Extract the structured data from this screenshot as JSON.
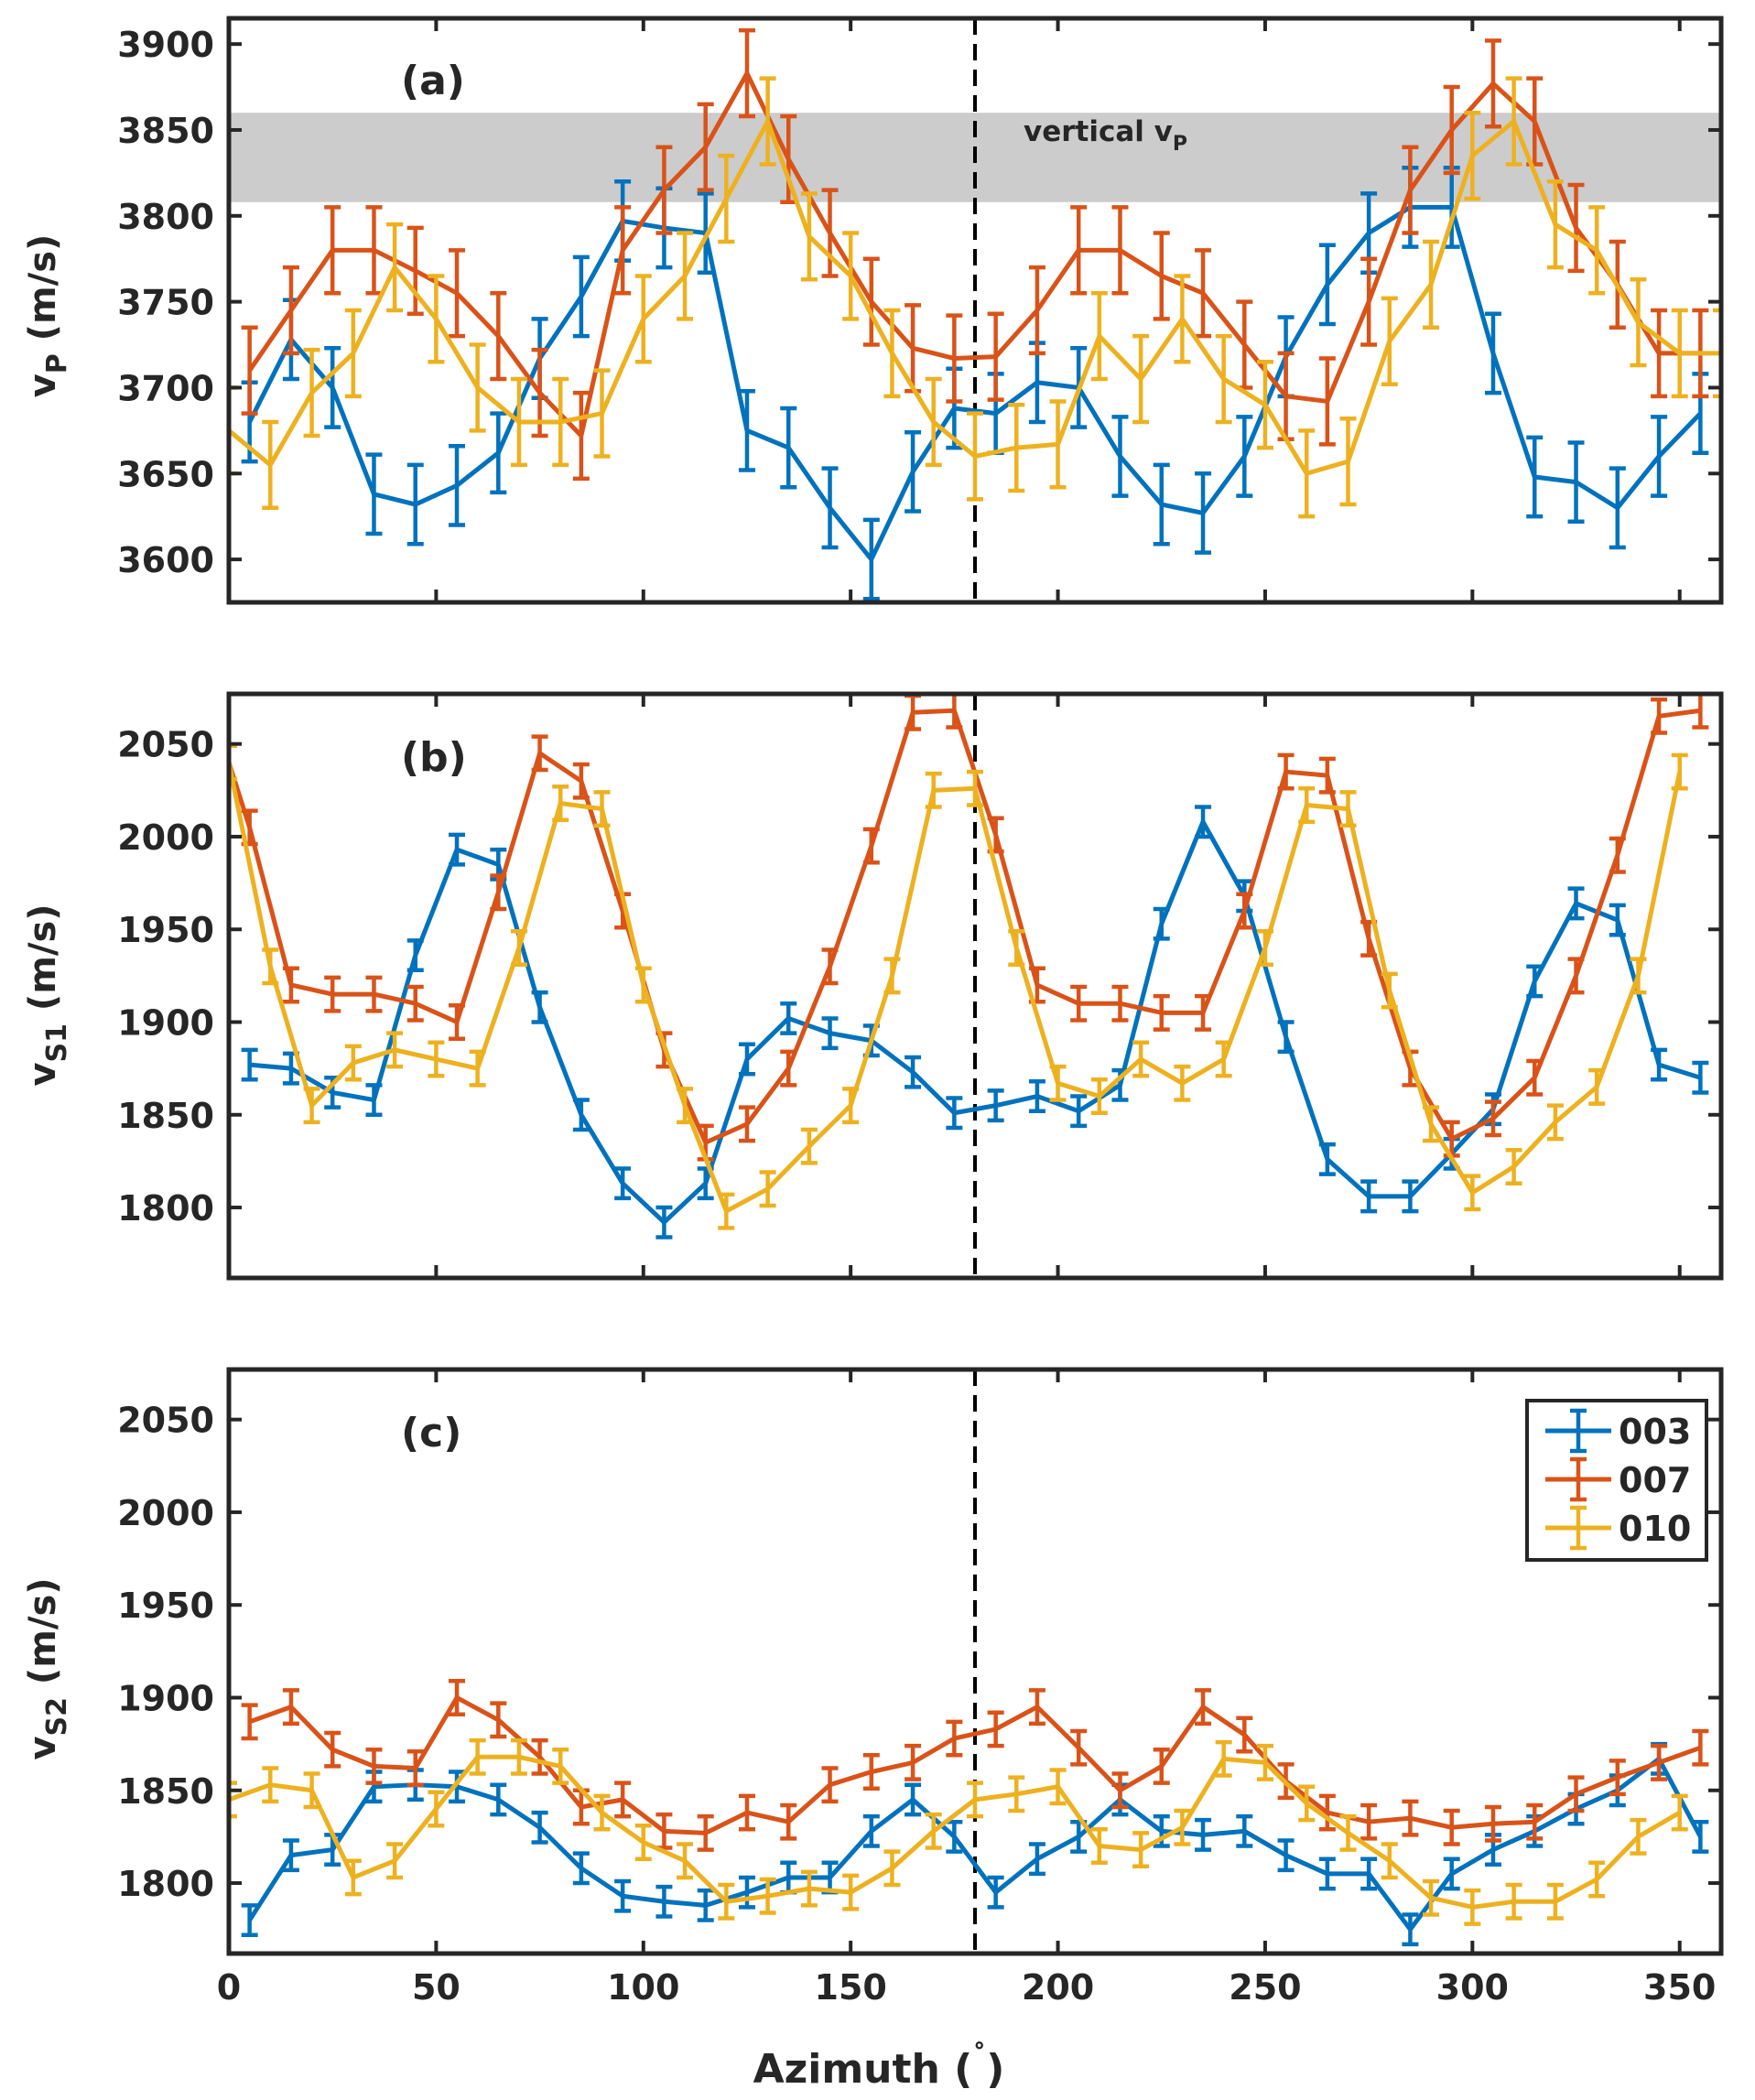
{
  "colors": {
    "s003": "#0072BD",
    "s007": "#D95319",
    "s010": "#EDB120",
    "band": "#CCCCCC",
    "axis": "#262626"
  },
  "xlabel": "Azimuth (",
  "xlabel_degree": "˚",
  "xlabel_close": ")",
  "panels": {
    "a": {
      "label": "(a)",
      "ylabel_main": "v",
      "ylabel_sub": "P",
      "ylabel_unit": " (m/s)",
      "band_label_main": "vertical v",
      "band_label_sub": "P"
    },
    "b": {
      "label": "(b)",
      "ylabel_main": "v",
      "ylabel_sub": "S1",
      "ylabel_unit": " (m/s)"
    },
    "c": {
      "label": "(c)",
      "ylabel_main": "v",
      "ylabel_sub": "S2",
      "ylabel_unit": " (m/s)"
    }
  },
  "legend": {
    "labels": [
      "003",
      "007",
      "010"
    ]
  },
  "chart_data": [
    {
      "id": "a",
      "type": "line",
      "title": "(a)",
      "xlabel": "Azimuth (˚)",
      "ylabel": "vP (m/s)",
      "xlim": [
        0,
        360
      ],
      "ylim": [
        3575,
        3915
      ],
      "xticks": [
        0,
        50,
        100,
        150,
        200,
        250,
        300,
        350
      ],
      "yticks": [
        3600,
        3650,
        3700,
        3750,
        3800,
        3850,
        3900
      ],
      "band": {
        "y0": 3808,
        "y1": 3860,
        "label": "vertical vP"
      },
      "vline": 180,
      "series": [
        {
          "name": "003",
          "x": [
            5,
            15,
            25,
            35,
            45,
            55,
            65,
            75,
            85,
            95,
            105,
            115,
            125,
            135,
            145,
            155,
            165,
            175,
            185,
            195,
            205,
            215,
            225,
            235,
            245,
            255,
            265,
            275,
            285,
            295,
            305,
            315,
            325,
            335,
            345,
            355
          ],
          "y": [
            3680,
            3728,
            3700,
            3638,
            3632,
            3643,
            3662,
            3717,
            3753,
            3797,
            3793,
            3790,
            3675,
            3665,
            3630,
            3600,
            3651,
            3688,
            3685,
            3703,
            3700,
            3660,
            3632,
            3627,
            3660,
            3718,
            3760,
            3790,
            3805,
            3805,
            3720,
            3648,
            3645,
            3630,
            3660,
            3685
          ],
          "err": 23
        },
        {
          "name": "007",
          "x": [
            5,
            15,
            25,
            35,
            45,
            55,
            65,
            75,
            85,
            95,
            105,
            115,
            125,
            135,
            145,
            155,
            165,
            175,
            185,
            195,
            205,
            215,
            225,
            235,
            245,
            255,
            265,
            275,
            285,
            295,
            305,
            315,
            325,
            335,
            345,
            355
          ],
          "y": [
            3710,
            3745,
            3780,
            3780,
            3768,
            3755,
            3730,
            3697,
            3672,
            3780,
            3815,
            3840,
            3883,
            3833,
            3790,
            3750,
            3723,
            3717,
            3718,
            3745,
            3780,
            3780,
            3765,
            3755,
            3725,
            3695,
            3692,
            3750,
            3815,
            3850,
            3877,
            3855,
            3793,
            3760,
            3720,
            3720
          ],
          "err": 25
        },
        {
          "name": "010",
          "x": [
            0,
            10,
            20,
            30,
            40,
            50,
            60,
            70,
            80,
            90,
            100,
            110,
            120,
            130,
            140,
            150,
            160,
            170,
            180,
            190,
            200,
            210,
            220,
            230,
            240,
            250,
            260,
            270,
            280,
            290,
            300,
            310,
            320,
            330,
            340,
            350,
            360
          ],
          "y": [
            3675,
            3655,
            3697,
            3720,
            3770,
            3740,
            3700,
            3680,
            3680,
            3685,
            3740,
            3765,
            3810,
            3855,
            3788,
            3765,
            3720,
            3680,
            3660,
            3665,
            3667,
            3730,
            3705,
            3740,
            3705,
            3690,
            3650,
            3657,
            3727,
            3760,
            3835,
            3855,
            3795,
            3780,
            3738,
            3720,
            3720
          ],
          "err": 25
        }
      ]
    },
    {
      "id": "b",
      "type": "line",
      "title": "(b)",
      "xlabel": "Azimuth (˚)",
      "ylabel": "vS1 (m/s)",
      "xlim": [
        0,
        360
      ],
      "ylim": [
        1762,
        2077
      ],
      "xticks": [
        0,
        50,
        100,
        150,
        200,
        250,
        300,
        350
      ],
      "yticks": [
        1800,
        1850,
        1900,
        1950,
        2000,
        2050
      ],
      "vline": 180,
      "series": [
        {
          "name": "003",
          "x": [
            5,
            15,
            25,
            35,
            45,
            55,
            65,
            75,
            85,
            95,
            105,
            115,
            125,
            135,
            145,
            155,
            165,
            175,
            185,
            195,
            205,
            215,
            225,
            235,
            245,
            255,
            265,
            275,
            285,
            295,
            305,
            315,
            325,
            335,
            345,
            355
          ],
          "y": [
            1877,
            1875,
            1862,
            1858,
            1936,
            1993,
            1985,
            1908,
            1850,
            1813,
            1792,
            1813,
            1880,
            1902,
            1894,
            1890,
            1873,
            1851,
            1855,
            1860,
            1852,
            1866,
            1953,
            2008,
            1968,
            1892,
            1826,
            1806,
            1806,
            1829,
            1853,
            1922,
            1964,
            1955,
            1877,
            1870
          ],
          "err": 8
        },
        {
          "name": "007",
          "x": [
            0,
            5,
            15,
            25,
            35,
            45,
            55,
            65,
            75,
            85,
            95,
            105,
            115,
            125,
            135,
            145,
            155,
            165,
            175,
            185,
            195,
            205,
            215,
            225,
            235,
            245,
            255,
            265,
            275,
            285,
            295,
            305,
            315,
            325,
            335,
            345,
            355
          ],
          "y": [
            2040,
            2005,
            1920,
            1915,
            1915,
            1910,
            1900,
            1970,
            2045,
            2030,
            1960,
            1885,
            1835,
            1845,
            1875,
            1930,
            1995,
            2067,
            2068,
            2001,
            1920,
            1910,
            1910,
            1905,
            1905,
            1960,
            2035,
            2033,
            1945,
            1875,
            1837,
            1848,
            1870,
            1925,
            1990,
            2065,
            2068
          ],
          "err": 9
        },
        {
          "name": "010",
          "x": [
            0,
            10,
            20,
            30,
            40,
            50,
            60,
            70,
            80,
            90,
            100,
            110,
            120,
            130,
            140,
            150,
            160,
            170,
            180,
            190,
            200,
            210,
            220,
            230,
            240,
            250,
            260,
            270,
            280,
            290,
            300,
            310,
            320,
            330,
            340,
            350
          ],
          "y": [
            2040,
            1930,
            1855,
            1878,
            1885,
            1880,
            1875,
            1940,
            2018,
            2015,
            1920,
            1855,
            1798,
            1810,
            1833,
            1855,
            1925,
            2025,
            2026,
            1940,
            1867,
            1860,
            1880,
            1867,
            1880,
            1940,
            2017,
            2015,
            1917,
            1845,
            1808,
            1822,
            1846,
            1865,
            1925,
            2035
          ],
          "err": 9
        }
      ]
    },
    {
      "id": "c",
      "type": "line",
      "title": "(c)",
      "xlabel": "Azimuth (˚)",
      "ylabel": "vS2 (m/s)",
      "xlim": [
        0,
        360
      ],
      "ylim": [
        1762,
        2077
      ],
      "xticks": [
        0,
        50,
        100,
        150,
        200,
        250,
        300,
        350
      ],
      "yticks": [
        1800,
        1850,
        1900,
        1950,
        2000,
        2050
      ],
      "vline": 180,
      "series": [
        {
          "name": "003",
          "x": [
            5,
            15,
            25,
            35,
            45,
            55,
            65,
            75,
            85,
            95,
            105,
            115,
            125,
            135,
            145,
            155,
            165,
            175,
            185,
            195,
            205,
            215,
            225,
            235,
            245,
            255,
            265,
            275,
            285,
            295,
            305,
            315,
            325,
            335,
            345,
            355
          ],
          "y": [
            1780,
            1815,
            1818,
            1852,
            1853,
            1852,
            1845,
            1830,
            1808,
            1793,
            1790,
            1788,
            1795,
            1803,
            1803,
            1828,
            1845,
            1825,
            1795,
            1813,
            1825,
            1845,
            1828,
            1826,
            1828,
            1815,
            1805,
            1805,
            1775,
            1805,
            1818,
            1828,
            1840,
            1850,
            1867,
            1825
          ],
          "err": 8
        },
        {
          "name": "007",
          "x": [
            5,
            15,
            25,
            35,
            45,
            55,
            65,
            75,
            85,
            95,
            105,
            115,
            125,
            135,
            145,
            155,
            165,
            175,
            185,
            195,
            205,
            215,
            225,
            235,
            245,
            255,
            265,
            275,
            285,
            295,
            305,
            315,
            325,
            335,
            345,
            355
          ],
          "y": [
            1887,
            1895,
            1872,
            1863,
            1862,
            1900,
            1888,
            1868,
            1841,
            1845,
            1828,
            1827,
            1838,
            1833,
            1853,
            1860,
            1865,
            1878,
            1883,
            1895,
            1873,
            1850,
            1863,
            1895,
            1880,
            1855,
            1838,
            1833,
            1835,
            1830,
            1832,
            1833,
            1848,
            1857,
            1865,
            1873
          ],
          "err": 9
        },
        {
          "name": "010",
          "x": [
            0,
            10,
            20,
            30,
            40,
            50,
            60,
            70,
            80,
            90,
            100,
            110,
            120,
            130,
            140,
            150,
            160,
            170,
            180,
            190,
            200,
            210,
            220,
            230,
            240,
            250,
            260,
            270,
            280,
            290,
            300,
            310,
            320,
            330,
            340,
            350
          ],
          "y": [
            1845,
            1853,
            1850,
            1803,
            1812,
            1840,
            1868,
            1868,
            1863,
            1838,
            1822,
            1812,
            1790,
            1793,
            1797,
            1795,
            1808,
            1828,
            1845,
            1848,
            1852,
            1820,
            1818,
            1830,
            1867,
            1865,
            1843,
            1827,
            1812,
            1792,
            1787,
            1790,
            1790,
            1802,
            1825,
            1838
          ],
          "err": 9
        }
      ]
    }
  ]
}
